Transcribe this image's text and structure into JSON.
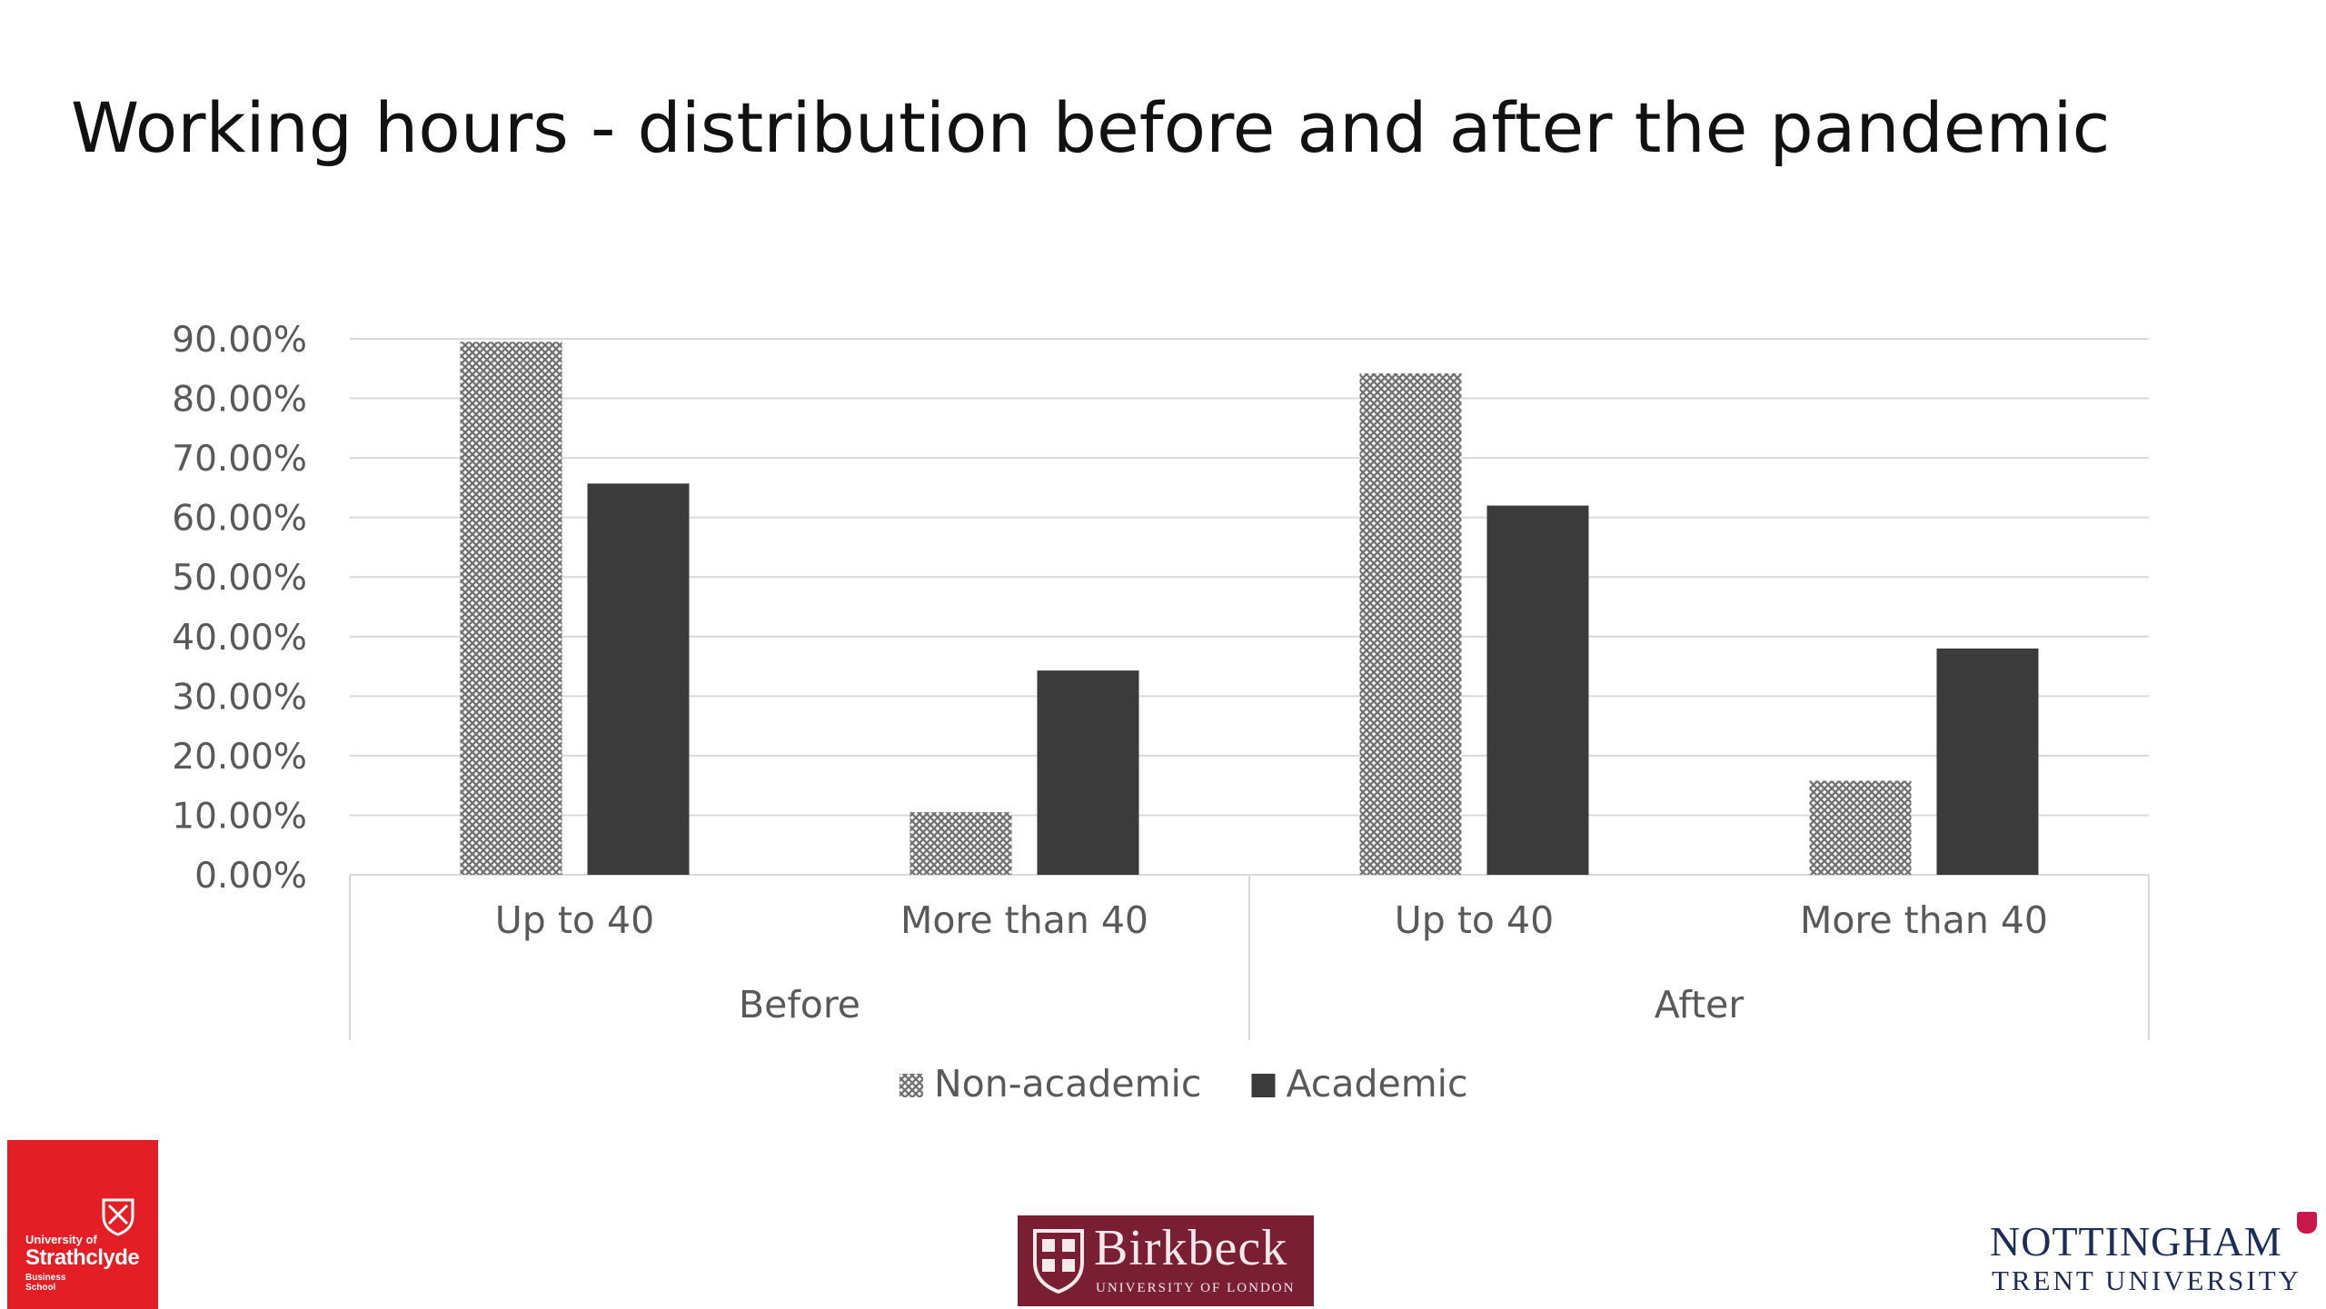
{
  "slide": {
    "title": "Working hours - distribution before and after the pandemic"
  },
  "chart_data": {
    "type": "bar",
    "title": "",
    "xlabel": "",
    "ylabel": "",
    "ylim": [
      0,
      90
    ],
    "y_tick_values": [
      0,
      10,
      20,
      30,
      40,
      50,
      60,
      70,
      80,
      90
    ],
    "y_tick_labels": [
      "0.00%",
      "10.00%",
      "20.00%",
      "30.00%",
      "40.00%",
      "50.00%",
      "60.00%",
      "70.00%",
      "80.00%",
      "90.00%"
    ],
    "grid": true,
    "legend_position": "bottom",
    "groups": [
      {
        "label": "Before",
        "categories": [
          "Up to 40",
          "More than 40"
        ]
      },
      {
        "label": "After",
        "categories": [
          "Up to 40",
          "More than 40"
        ]
      }
    ],
    "categories": [
      "Up to 40",
      "More than 40",
      "Up to 40",
      "More than 40"
    ],
    "series": [
      {
        "name": "Non-academic",
        "values": [
          89.5,
          10.5,
          84.2,
          15.8
        ],
        "color": "#8c8c8c",
        "pattern": "crosshatch"
      },
      {
        "name": "Academic",
        "values": [
          65.7,
          34.3,
          62.0,
          38.0
        ],
        "color": "#3b3b3b",
        "pattern": "solid"
      }
    ]
  },
  "logos": {
    "strathclyde": {
      "line1": "University of",
      "line2": "Strathclyde",
      "line3": "Business School",
      "color": "#e31e24"
    },
    "birkbeck": {
      "name": "Birkbeck",
      "sub": "UNIVERSITY OF LONDON",
      "color": "#7a1f33"
    },
    "ntu": {
      "line1": "NOTTINGHAM",
      "line2": "TRENT UNIVERSITY",
      "color": "#1d2d57"
    }
  }
}
